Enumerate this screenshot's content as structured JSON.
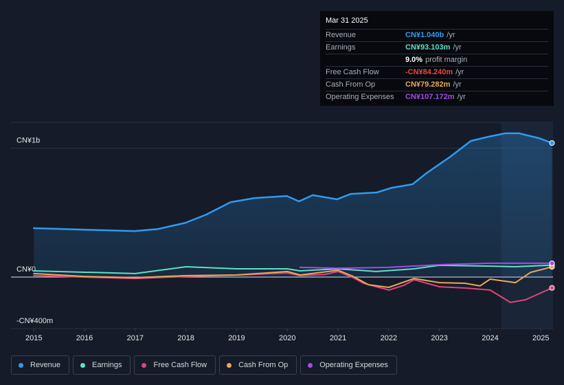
{
  "chart_data": {
    "type": "line",
    "xlim": [
      2014.55,
      2025.24
    ],
    "xticks": [
      2015,
      2016,
      2017,
      2018,
      2019,
      2020,
      2021,
      2022,
      2023,
      2024,
      2025
    ],
    "ylim": [
      -400,
      1200
    ],
    "yticks": [
      {
        "value": -400,
        "label": "-CN¥400m"
      },
      {
        "value": 0,
        "label": "CN¥0"
      },
      {
        "value": 1000,
        "label": "CN¥1b"
      }
    ],
    "series": [
      {
        "name": "Revenue",
        "color": "#2f9bf0",
        "x": [
          2015.0,
          2015.96,
          2016.99,
          2017.45,
          2017.99,
          2018.4,
          2018.88,
          2019.35,
          2019.99,
          2020.23,
          2020.5,
          2020.98,
          2021.25,
          2021.76,
          2022.06,
          2022.47,
          2022.74,
          2023.21,
          2023.62,
          2023.96,
          2024.3,
          2024.57,
          2024.97,
          2025.22
        ],
        "values": [
          379,
          368,
          357,
          373,
          421,
          485,
          581,
          613,
          629,
          587,
          635,
          603,
          645,
          656,
          693,
          720,
          805,
          933,
          1056,
          1088,
          1115,
          1115,
          1077,
          1040
        ]
      },
      {
        "name": "Earnings",
        "color": "#5fe0c9",
        "x": [
          2015.0,
          2017.0,
          2018.0,
          2019.0,
          2020.0,
          2020.25,
          2021.0,
          2021.75,
          2022.5,
          2023.0,
          2024.0,
          2024.5,
          2025.22
        ],
        "values": [
          48,
          27,
          80,
          64,
          64,
          48,
          64,
          43,
          64,
          91,
          85,
          80,
          93
        ]
      },
      {
        "name": "Free Cash Flow",
        "color": "#e0457b",
        "x": [
          2015.0,
          2016.0,
          2017.0,
          2018.0,
          2019.0,
          2020.0,
          2020.25,
          2020.75,
          2021.0,
          2021.3,
          2021.5,
          2022.0,
          2022.3,
          2022.5,
          2023.0,
          2023.5,
          2024.0,
          2024.4,
          2024.7,
          2025.22
        ],
        "values": [
          11,
          0,
          -11,
          5,
          16,
          32,
          11,
          21,
          43,
          -5,
          -48,
          -101,
          -64,
          -21,
          -75,
          -85,
          -101,
          -197,
          -176,
          -84
        ]
      },
      {
        "name": "Cash From Op",
        "color": "#e8a85a",
        "x": [
          2015.0,
          2016.0,
          2017.0,
          2018.0,
          2019.0,
          2020.0,
          2020.25,
          2021.0,
          2021.3,
          2021.6,
          2022.0,
          2022.5,
          2023.0,
          2023.5,
          2023.8,
          2024.0,
          2024.5,
          2024.8,
          2025.22
        ],
        "values": [
          27,
          5,
          -5,
          11,
          16,
          43,
          16,
          53,
          5,
          -59,
          -80,
          -11,
          -43,
          -48,
          -69,
          -16,
          -43,
          37,
          79
        ]
      },
      {
        "name": "Operating Expenses",
        "color": "#a34ce8",
        "x": [
          2020.25,
          2021.0,
          2022.0,
          2023.0,
          2024.0,
          2025.22
        ],
        "values": [
          75,
          69,
          75,
          96,
          107,
          107
        ]
      }
    ],
    "tooltip": {
      "date": "Mar 31 2025",
      "rows": [
        {
          "label": "Revenue",
          "value": "CN¥1.040b",
          "unit": "/yr",
          "color": "#2f9bf0"
        },
        {
          "label": "Earnings",
          "value": "CN¥93.103m",
          "unit": "/yr",
          "color": "#5fe0c9"
        },
        {
          "value": "9.0%",
          "unit": "profit margin",
          "color": "#ffffff"
        },
        {
          "label": "Free Cash Flow",
          "value": "-CN¥84.240m",
          "unit": "/yr",
          "color": "#e84545"
        },
        {
          "label": "Cash From Op",
          "value": "CN¥79.282m",
          "unit": "/yr",
          "color": "#e8a85a"
        },
        {
          "label": "Operating Expenses",
          "value": "CN¥107.172m",
          "unit": "/yr",
          "color": "#a34ce8"
        }
      ]
    }
  }
}
